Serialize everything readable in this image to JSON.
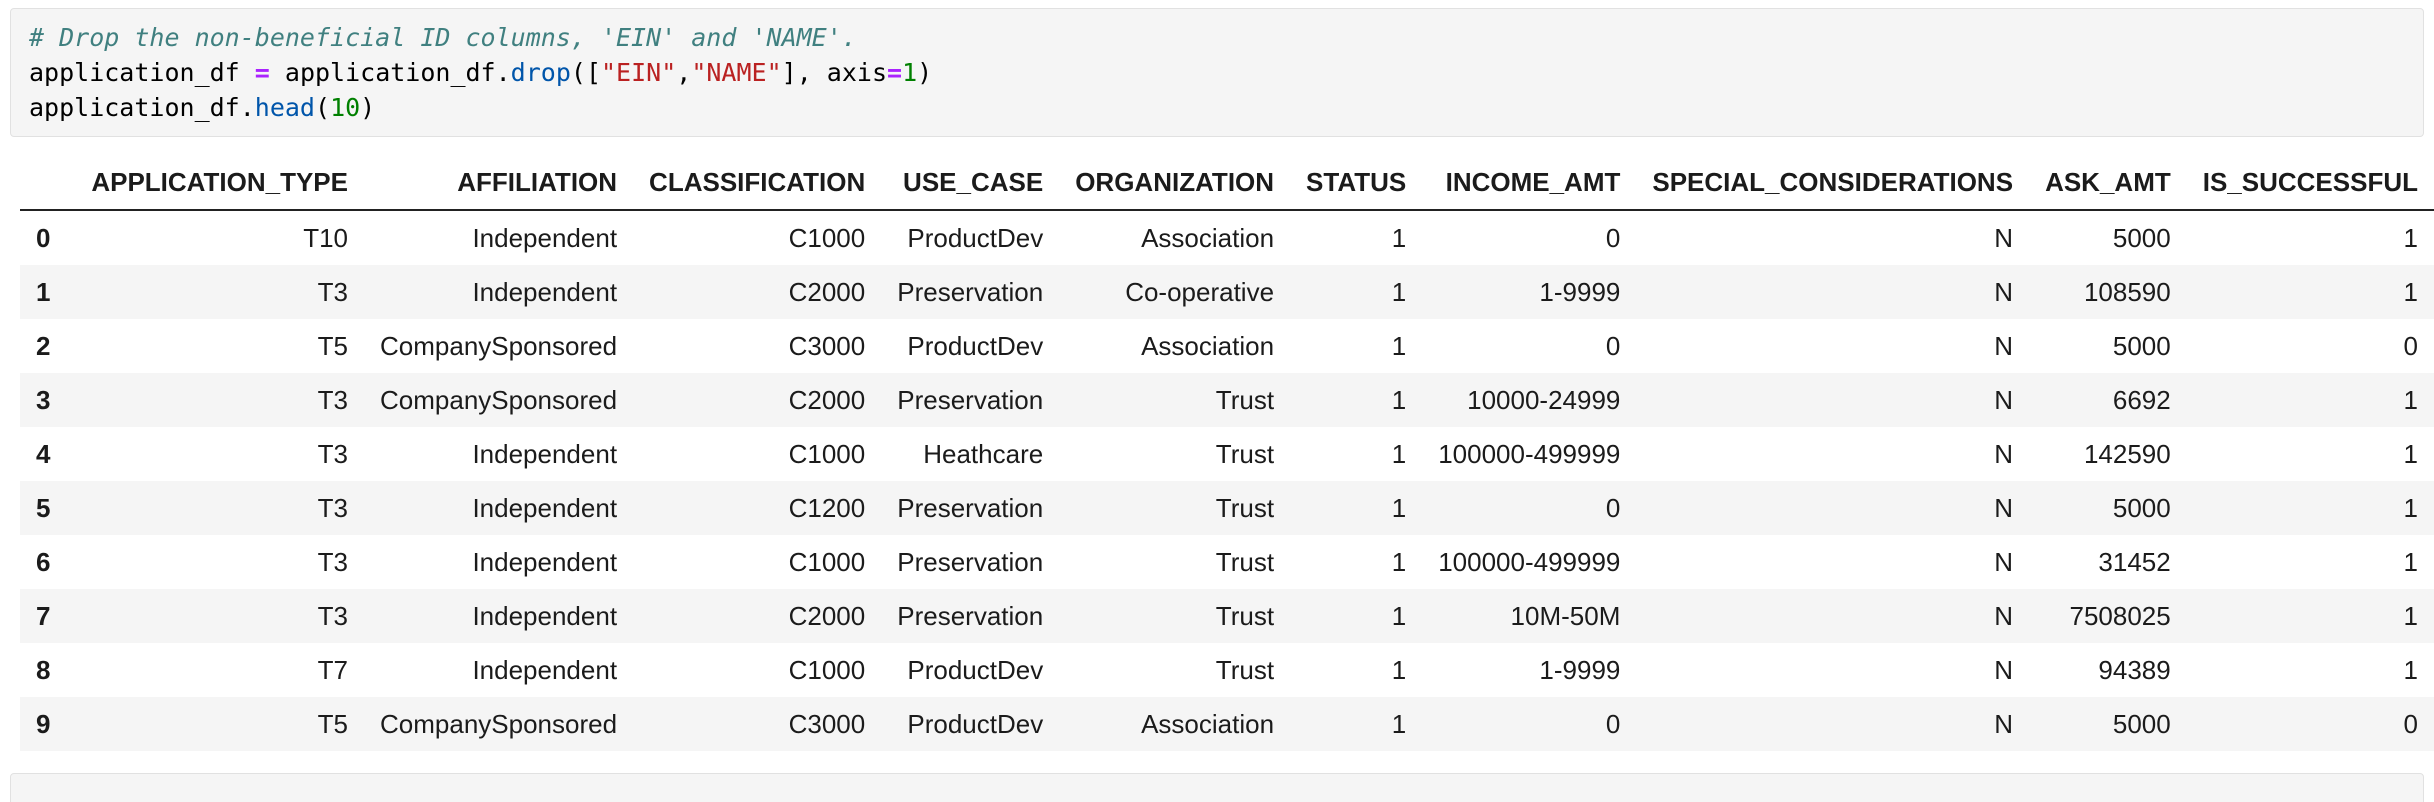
{
  "theme": {
    "comment_color": "#408080",
    "operator_color": "#AA22FF",
    "string_color": "#BA2121",
    "number_color": "#008000",
    "property_color": "#0055AA",
    "code_text_color": "#000000",
    "cell_bg": "#F5F5F5",
    "cell_border": "#E1E1E1",
    "stripe": "#F5F5F5",
    "header_border": "#222222"
  },
  "notebook": {
    "code_cell": {
      "lines": [
        [
          {
            "text": "# Drop the non-beneficial ID columns, 'EIN' and 'NAME'.",
            "type": "comment"
          }
        ],
        [
          {
            "text": "application_df ",
            "type": "plain"
          },
          {
            "text": "=",
            "type": "operator"
          },
          {
            "text": " application_df.",
            "type": "plain"
          },
          {
            "text": "drop",
            "type": "property"
          },
          {
            "text": "([",
            "type": "plain"
          },
          {
            "text": "\"EIN\"",
            "type": "string"
          },
          {
            "text": ",",
            "type": "plain"
          },
          {
            "text": "\"NAME\"",
            "type": "string"
          },
          {
            "text": "], axis",
            "type": "plain"
          },
          {
            "text": "=",
            "type": "operator"
          },
          {
            "text": "1",
            "type": "number"
          },
          {
            "text": ")",
            "type": "plain"
          }
        ],
        [
          {
            "text": "application_df.",
            "type": "plain"
          },
          {
            "text": "head",
            "type": "property"
          },
          {
            "text": "(",
            "type": "plain"
          },
          {
            "text": "10",
            "type": "number"
          },
          {
            "text": ")",
            "type": "plain"
          }
        ]
      ]
    },
    "output_table": {
      "columns": [
        "",
        "APPLICATION_TYPE",
        "AFFILIATION",
        "CLASSIFICATION",
        "USE_CASE",
        "ORGANIZATION",
        "STATUS",
        "INCOME_AMT",
        "SPECIAL_CONSIDERATIONS",
        "ASK_AMT",
        "IS_SUCCESSFUL"
      ],
      "rows": [
        [
          "0",
          "T10",
          "Independent",
          "C1000",
          "ProductDev",
          "Association",
          "1",
          "0",
          "N",
          "5000",
          "1"
        ],
        [
          "1",
          "T3",
          "Independent",
          "C2000",
          "Preservation",
          "Co-operative",
          "1",
          "1-9999",
          "N",
          "108590",
          "1"
        ],
        [
          "2",
          "T5",
          "CompanySponsored",
          "C3000",
          "ProductDev",
          "Association",
          "1",
          "0",
          "N",
          "5000",
          "0"
        ],
        [
          "3",
          "T3",
          "CompanySponsored",
          "C2000",
          "Preservation",
          "Trust",
          "1",
          "10000-24999",
          "N",
          "6692",
          "1"
        ],
        [
          "4",
          "T3",
          "Independent",
          "C1000",
          "Heathcare",
          "Trust",
          "1",
          "100000-499999",
          "N",
          "142590",
          "1"
        ],
        [
          "5",
          "T3",
          "Independent",
          "C1200",
          "Preservation",
          "Trust",
          "1",
          "0",
          "N",
          "5000",
          "1"
        ],
        [
          "6",
          "T3",
          "Independent",
          "C1000",
          "Preservation",
          "Trust",
          "1",
          "100000-499999",
          "N",
          "31452",
          "1"
        ],
        [
          "7",
          "T3",
          "Independent",
          "C2000",
          "Preservation",
          "Trust",
          "1",
          "10M-50M",
          "N",
          "7508025",
          "1"
        ],
        [
          "8",
          "T7",
          "Independent",
          "C1000",
          "ProductDev",
          "Trust",
          "1",
          "1-9999",
          "N",
          "94389",
          "1"
        ],
        [
          "9",
          "T5",
          "CompanySponsored",
          "C3000",
          "ProductDev",
          "Association",
          "1",
          "0",
          "N",
          "5000",
          "0"
        ]
      ]
    }
  }
}
